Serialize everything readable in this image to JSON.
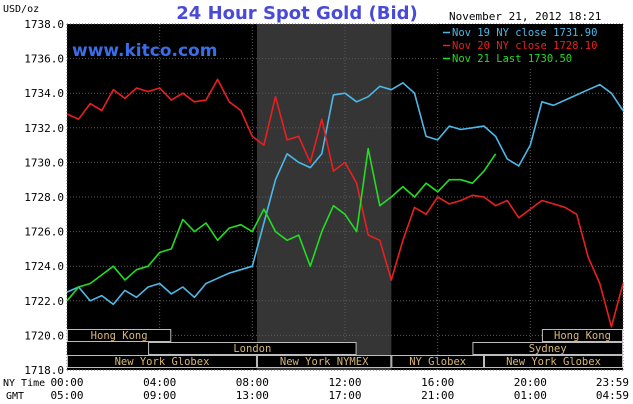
{
  "chart_data": {
    "type": "line",
    "title": "24 Hour Spot Gold (Bid)",
    "watermark": "www.kitco.com",
    "date_stamp": "November 21, 2012 18:21",
    "ylabel": "USD/oz",
    "ylim": [
      1718,
      1738
    ],
    "y_ticks": [
      "1718.0",
      "1720.0",
      "1722.0",
      "1724.0",
      "1726.0",
      "1728.0",
      "1730.0",
      "1732.0",
      "1734.0",
      "1736.0",
      "1738.0"
    ],
    "x_range_hours": [
      0,
      24
    ],
    "grid": true,
    "legend_position": "top-right",
    "time_rows": [
      {
        "label": "NY Time",
        "ticks": [
          "00:00",
          "04:00",
          "08:00",
          "12:00",
          "16:00",
          "20:00",
          "23:59"
        ]
      },
      {
        "label": "GMT",
        "ticks": [
          "05:00",
          "09:00",
          "13:00",
          "17:00",
          "21:00",
          "01:00",
          "04:59"
        ]
      }
    ],
    "x_tick_hours": [
      0,
      4,
      8,
      12,
      16,
      20,
      24
    ],
    "highlight_hours": [
      8.2,
      14.0
    ],
    "markets": [
      {
        "name": "Hong Kong",
        "start": 0.0,
        "end": 4.5,
        "row": 1
      },
      {
        "name": "Hong Kong",
        "start": 20.5,
        "end": 24.0,
        "row": 1
      },
      {
        "name": "London",
        "start": 3.5,
        "end": 12.5,
        "row": 2
      },
      {
        "name": "Sydney",
        "start": 17.5,
        "end": 24.0,
        "row": 2
      },
      {
        "name": "New York Globex",
        "start": 0.0,
        "end": 8.2,
        "row": 3
      },
      {
        "name": "New York NYMEX",
        "start": 8.2,
        "end": 14.0,
        "row": 3
      },
      {
        "name": "NY Globex",
        "start": 14.0,
        "end": 18.0,
        "row": 3
      },
      {
        "name": "New York Globex",
        "start": 18.0,
        "end": 24.0,
        "row": 3
      }
    ],
    "series": [
      {
        "name": "Nov 19 NY close 1731.90",
        "color": "#4db8e8",
        "x": [
          0,
          0.5,
          1,
          1.5,
          2,
          2.5,
          3,
          3.5,
          4,
          4.5,
          5,
          5.5,
          6,
          6.5,
          7,
          7.5,
          8,
          8.5,
          9,
          9.5,
          10,
          10.5,
          11,
          11.5,
          12,
          12.5,
          13,
          13.5,
          14,
          14.5,
          15,
          15.5,
          16,
          16.5,
          17,
          17.5,
          18,
          18.5,
          19,
          19.5,
          20,
          20.5,
          21,
          21.5,
          22,
          22.5,
          23,
          23.5,
          24
        ],
        "values": [
          1722.5,
          1722.8,
          1722.0,
          1722.3,
          1721.8,
          1722.6,
          1722.2,
          1722.8,
          1723.0,
          1722.4,
          1722.8,
          1722.2,
          1723.0,
          1723.3,
          1723.6,
          1723.8,
          1724.0,
          1726.5,
          1729.0,
          1730.5,
          1730.0,
          1729.7,
          1730.5,
          1733.9,
          1734.0,
          1733.5,
          1733.8,
          1734.4,
          1734.2,
          1734.6,
          1734.0,
          1731.5,
          1731.3,
          1732.1,
          1731.9,
          1732.0,
          1732.1,
          1731.5,
          1730.2,
          1729.8,
          1731.0,
          1733.5,
          1733.3,
          1733.6,
          1733.9,
          1734.2,
          1734.5,
          1734.0,
          1733.0
        ]
      },
      {
        "name": "Nov 20 NY close 1728.10",
        "color": "#e82020",
        "x": [
          0,
          0.5,
          1,
          1.5,
          2,
          2.5,
          3,
          3.5,
          4,
          4.5,
          5,
          5.5,
          6,
          6.5,
          7,
          7.5,
          8,
          8.5,
          9,
          9.5,
          10,
          10.5,
          11,
          11.5,
          12,
          12.5,
          13,
          13.5,
          14,
          14.5,
          15,
          15.5,
          16,
          16.5,
          17,
          17.5,
          18,
          18.5,
          19,
          19.5,
          20,
          20.5,
          21,
          21.5,
          22,
          22.5,
          23,
          23.5,
          24
        ],
        "values": [
          1732.8,
          1732.5,
          1733.4,
          1733.0,
          1734.2,
          1733.7,
          1734.3,
          1734.1,
          1734.3,
          1733.6,
          1734.0,
          1733.5,
          1733.6,
          1734.8,
          1733.5,
          1733.0,
          1731.5,
          1731.0,
          1733.8,
          1731.3,
          1731.5,
          1730.0,
          1732.5,
          1729.5,
          1730.0,
          1728.8,
          1725.8,
          1725.5,
          1723.2,
          1725.5,
          1727.4,
          1727.0,
          1728.0,
          1727.6,
          1727.8,
          1728.1,
          1728.0,
          1727.5,
          1727.8,
          1726.8,
          1727.3,
          1727.8,
          1727.6,
          1727.4,
          1727.0,
          1724.5,
          1723.0,
          1720.5,
          1723.0
        ]
      },
      {
        "name": "Nov 21 Last 1730.50",
        "color": "#22dd22",
        "x": [
          0,
          0.5,
          1,
          1.5,
          2,
          2.5,
          3,
          3.5,
          4,
          4.5,
          5,
          5.5,
          6,
          6.5,
          7,
          7.5,
          8,
          8.5,
          9,
          9.5,
          10,
          10.5,
          11,
          11.5,
          12,
          12.5,
          13,
          13.5,
          14,
          14.5,
          15,
          15.5,
          16,
          16.5,
          17,
          17.5,
          18,
          18.5
        ],
        "values": [
          1722.0,
          1722.8,
          1723.0,
          1723.5,
          1724.0,
          1723.2,
          1723.8,
          1724.0,
          1724.8,
          1725.0,
          1726.7,
          1726.0,
          1726.5,
          1725.5,
          1726.2,
          1726.4,
          1726.0,
          1727.3,
          1726.0,
          1725.5,
          1725.8,
          1724.0,
          1726.0,
          1727.5,
          1727.0,
          1726.0,
          1730.8,
          1727.5,
          1728.0,
          1728.6,
          1728.0,
          1728.8,
          1728.3,
          1729.0,
          1729.0,
          1728.8,
          1729.5,
          1730.5
        ]
      }
    ]
  }
}
